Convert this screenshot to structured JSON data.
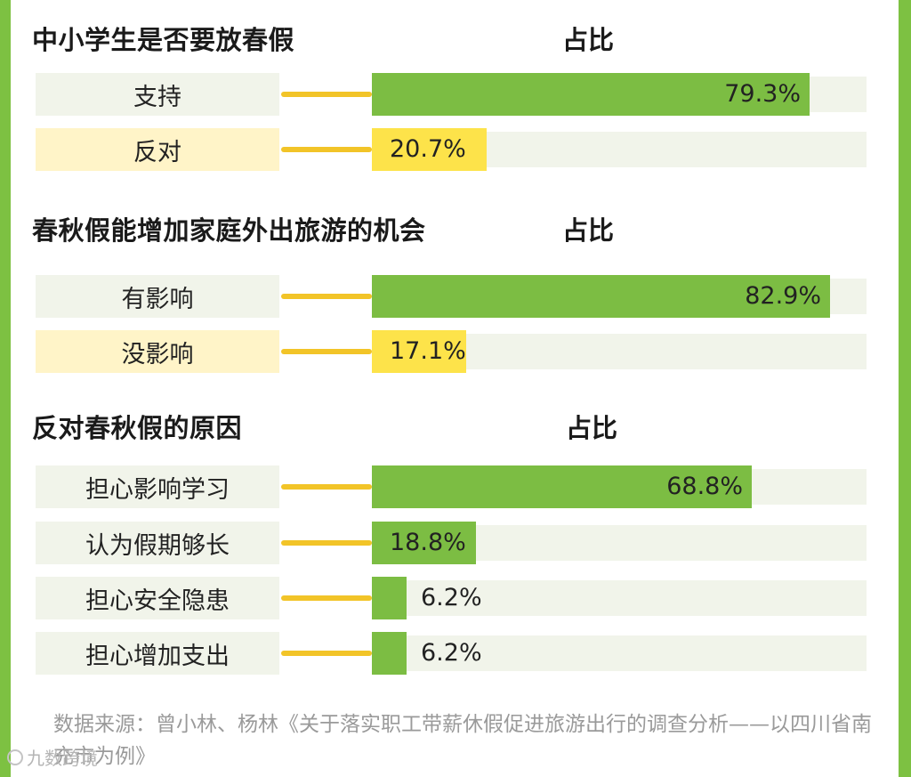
{
  "col_header": "占比",
  "source": "数据来源：曾小林、杨林《关于落实职工带薪休假促进旅游出行的调查分析——以四川省南充市为例》",
  "watermark": "九数跨境",
  "chart_data": [
    {
      "type": "bar",
      "title": "中小学生是否要放春假",
      "categories": [
        "支持",
        "反对"
      ],
      "values": [
        79.3,
        20.7
      ],
      "value_labels": [
        "79.3%",
        "20.7%"
      ],
      "bar_colors": [
        "#7cbd43",
        "#fde34a"
      ],
      "xlim": [
        0,
        100
      ],
      "grid": false
    },
    {
      "type": "bar",
      "title": "春秋假能增加家庭外出旅游的机会",
      "categories": [
        "有影响",
        "没影响"
      ],
      "values": [
        82.9,
        17.1
      ],
      "value_labels": [
        "82.9%",
        "17.1%"
      ],
      "bar_colors": [
        "#7cbd43",
        "#fde34a"
      ],
      "xlim": [
        0,
        100
      ],
      "grid": false
    },
    {
      "type": "bar",
      "title": "反对春秋假的原因",
      "categories": [
        "担心影响学习",
        "认为假期够长",
        "担心安全隐患",
        "担心增加支出"
      ],
      "values": [
        68.8,
        18.8,
        6.2,
        6.2
      ],
      "value_labels": [
        "68.8%",
        "18.8%",
        "6.2%",
        "6.2%"
      ],
      "bar_colors": [
        "#7cbd43",
        "#7cbd43",
        "#7cbd43",
        "#7cbd43"
      ],
      "xlim": [
        0,
        100
      ],
      "grid": false
    }
  ]
}
